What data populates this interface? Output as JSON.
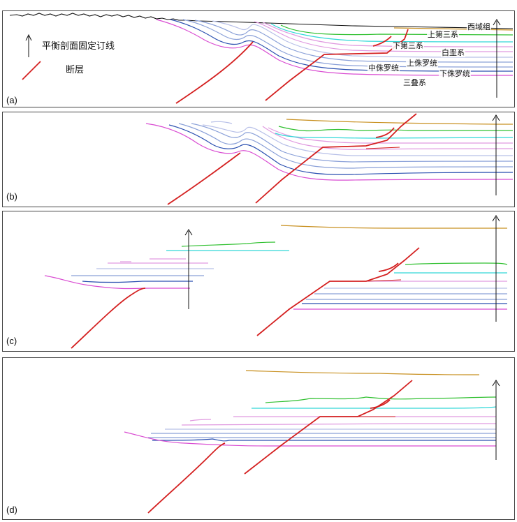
{
  "legend": {
    "pin_line_label": "平衡剖面固定订线",
    "fault_label": "断层"
  },
  "panels": [
    {
      "label": "(a)"
    },
    {
      "label": "(b)"
    },
    {
      "label": "(c)"
    },
    {
      "label": "(d)"
    }
  ],
  "units": {
    "xiyu": "西域组",
    "upper_tertiary": "上第三系",
    "lower_tertiary": "下第三系",
    "cretaceous": "白垩系",
    "upper_jurassic": "上侏罗统",
    "middle_jurassic": "中侏罗统",
    "lower_jurassic": "下侏罗统",
    "triassic": "三叠系"
  },
  "colors": {
    "fault": "#d42020",
    "triassic": "#d94cd2",
    "lower_jurassic": "#2a4fb0",
    "middle_jurassic": "#8aa0d8",
    "upper_jurassic": "#b8c0e8",
    "cretaceous": "#e09ae0",
    "lower_tertiary": "#30d8d8",
    "upper_tertiary": "#30c030",
    "xiyu": "#c89020",
    "surface": "#111111"
  }
}
